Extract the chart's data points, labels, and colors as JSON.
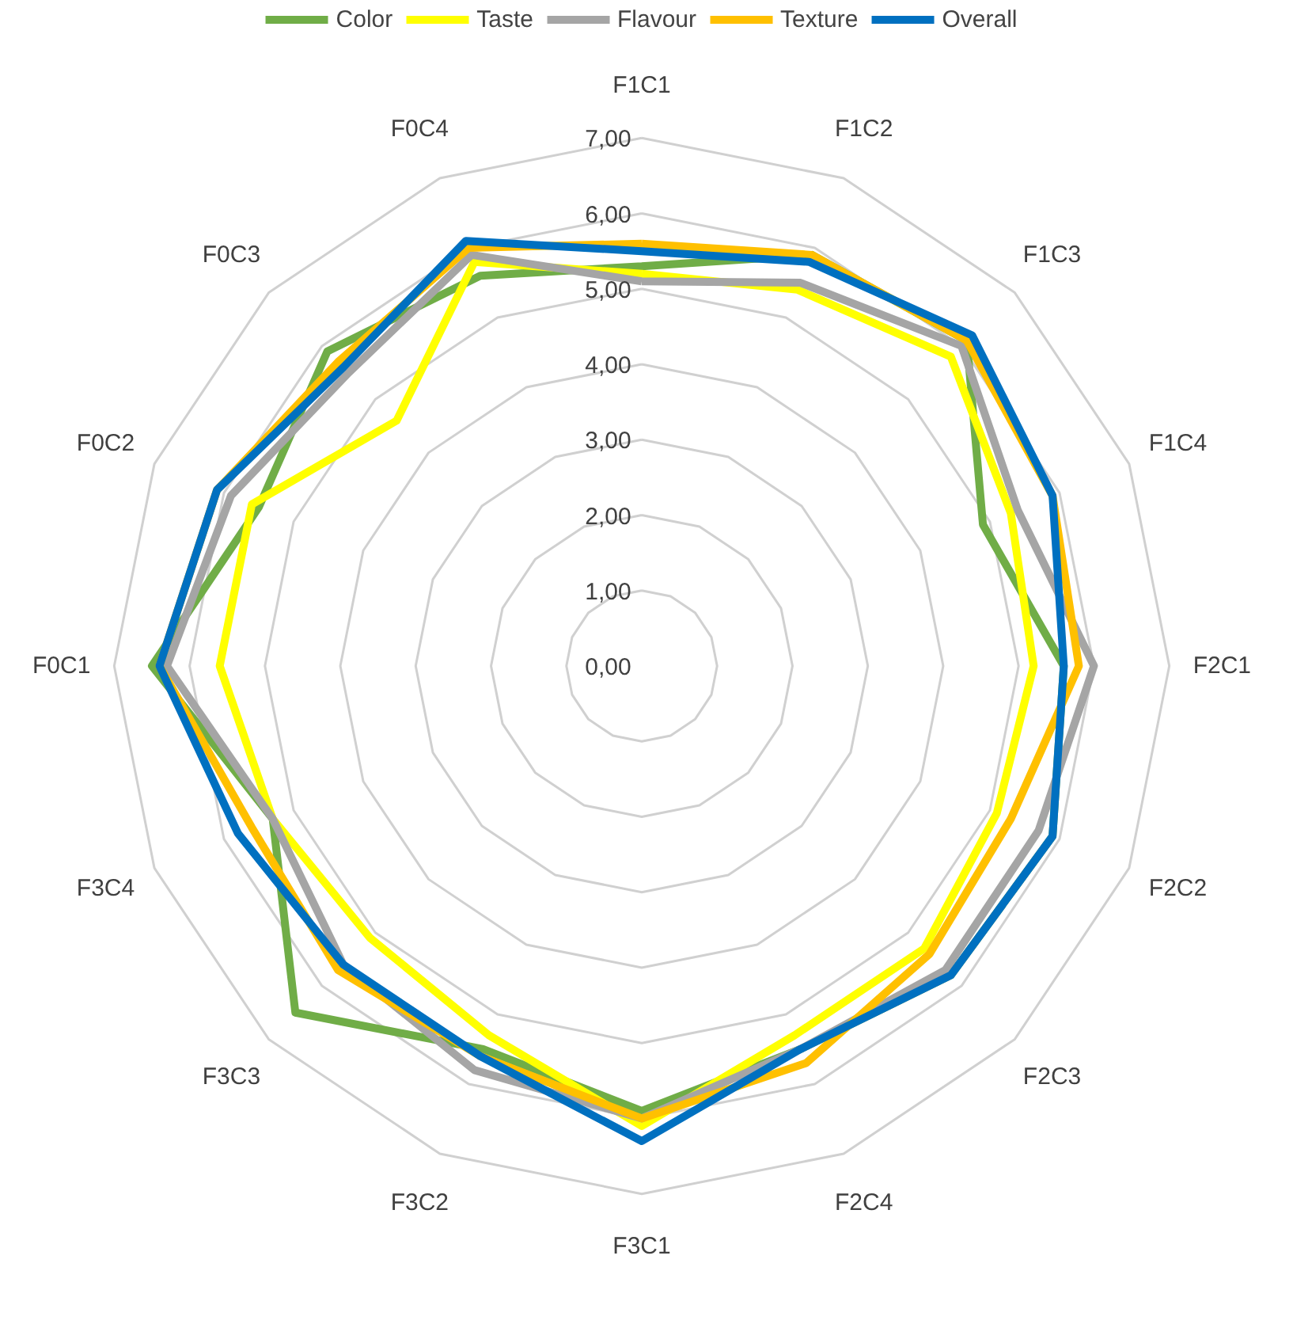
{
  "chart_data": {
    "type": "radar",
    "categories": [
      "F1C1",
      "F1C2",
      "F1C3",
      "F1C4",
      "F2C1",
      "F2C2",
      "F2C3",
      "F2C4",
      "F3C1",
      "F3C2",
      "F3C3",
      "F3C4",
      "F0C1",
      "F0C2",
      "F0C3",
      "F0C4"
    ],
    "ylim": [
      0,
      7
    ],
    "yticks": [
      {
        "value": 0,
        "label": "0,00"
      },
      {
        "value": 1,
        "label": "1,00"
      },
      {
        "value": 2,
        "label": "2,00"
      },
      {
        "value": 3,
        "label": "3,00"
      },
      {
        "value": 4,
        "label": "4,00"
      },
      {
        "value": 5,
        "label": "5,00"
      },
      {
        "value": 6,
        "label": "6,00"
      },
      {
        "value": 7,
        "label": "7,00"
      }
    ],
    "grid": true,
    "legend": "top",
    "series": [
      {
        "name": "Color",
        "color": "#70ad47",
        "values": [
          5.3,
          5.9,
          6.1,
          4.9,
          5.6,
          5.9,
          5.8,
          5.5,
          5.9,
          5.5,
          6.5,
          5.3,
          6.5,
          5.5,
          5.9,
          5.6
        ]
      },
      {
        "name": "Taste",
        "color": "#ffff00",
        "values": [
          5.2,
          5.4,
          5.8,
          5.3,
          5.2,
          5.1,
          5.3,
          5.3,
          6.1,
          5.3,
          5.1,
          5.3,
          5.6,
          5.6,
          4.6,
          5.8
        ]
      },
      {
        "name": "Flavour",
        "color": "#a5a5a5",
        "values": [
          5.1,
          5.5,
          6.0,
          5.4,
          6.0,
          5.7,
          5.7,
          5.5,
          6.0,
          5.8,
          5.6,
          5.3,
          6.3,
          5.9,
          5.5,
          5.9
        ]
      },
      {
        "name": "Texture",
        "color": "#ffc000",
        "values": [
          5.6,
          5.9,
          6.1,
          5.9,
          5.8,
          5.3,
          5.4,
          5.7,
          6.0,
          5.6,
          5.7,
          5.6,
          6.4,
          6.1,
          5.7,
          6.0
        ]
      },
      {
        "name": "Overall",
        "color": "#0070c0",
        "values": [
          5.5,
          5.8,
          6.2,
          5.9,
          5.6,
          5.9,
          5.8,
          5.5,
          6.3,
          5.6,
          5.6,
          5.8,
          6.4,
          6.1,
          5.6,
          6.1
        ]
      }
    ]
  }
}
